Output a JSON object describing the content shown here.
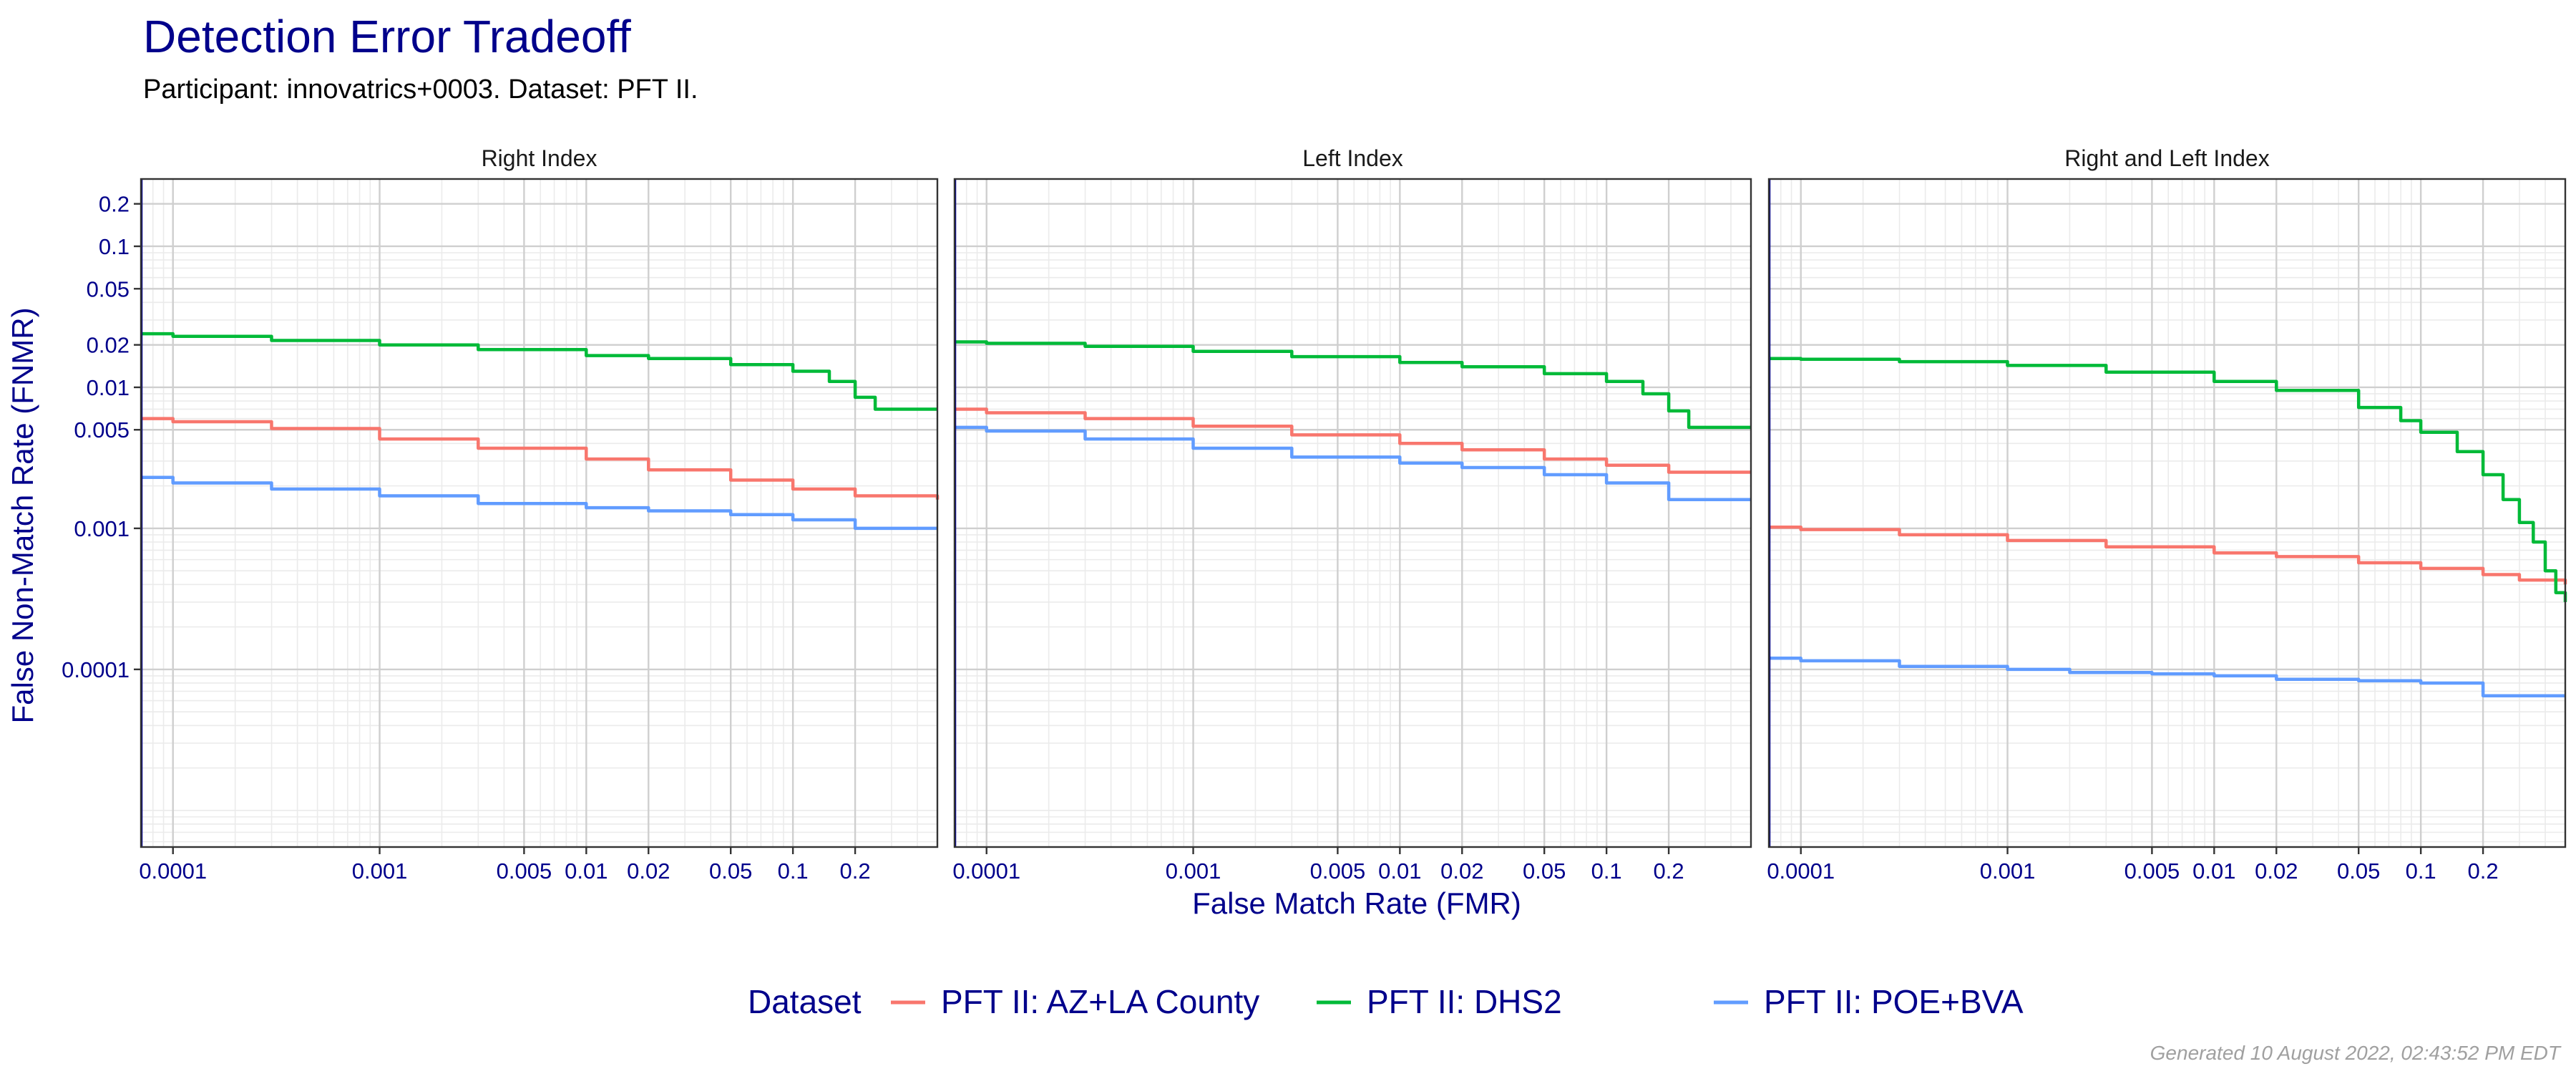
{
  "chart_data": {
    "type": "line",
    "title": "Detection Error Tradeoff",
    "subtitle": "Participant: innovatrics+0003. Dataset: PFT II.",
    "xlabel": "False Match Rate (FMR)",
    "ylabel": "False Non-Match Rate (FNMR)",
    "x_scale": "log",
    "y_scale": "log",
    "xlim": [
      7e-05,
      0.5
    ],
    "ylim": [
      5.5e-06,
      0.3
    ],
    "x_ticks": [
      {
        "value": 0.0001,
        "label": "0.0001"
      },
      {
        "value": 0.001,
        "label": "0.001"
      },
      {
        "value": 0.005,
        "label": "0.005"
      },
      {
        "value": 0.01,
        "label": "0.01"
      },
      {
        "value": 0.02,
        "label": "0.02"
      },
      {
        "value": 0.05,
        "label": "0.05"
      },
      {
        "value": 0.1,
        "label": "0.1"
      },
      {
        "value": 0.2,
        "label": "0.2"
      }
    ],
    "y_ticks": [
      {
        "value": 0.0001,
        "label": "0.0001"
      },
      {
        "value": 0.001,
        "label": "0.001"
      },
      {
        "value": 0.005,
        "label": "0.005"
      },
      {
        "value": 0.01,
        "label": "0.01"
      },
      {
        "value": 0.02,
        "label": "0.02"
      },
      {
        "value": 0.05,
        "label": "0.05"
      },
      {
        "value": 0.1,
        "label": "0.1"
      },
      {
        "value": 0.2,
        "label": "0.2"
      }
    ],
    "grid": true,
    "legend": {
      "title": "Dataset",
      "position": "bottom",
      "entries": [
        {
          "name": "PFT II: AZ+LA County",
          "color": "#f8766d"
        },
        {
          "name": "PFT II: DHS2",
          "color": "#00ba38"
        },
        {
          "name": "PFT II: POE+BVA",
          "color": "#619cff"
        }
      ]
    },
    "panels": [
      {
        "title": "Right Index",
        "series": [
          {
            "name": "PFT II: AZ+LA County",
            "color": "#f8766d",
            "x": [
              7e-05,
              0.0001,
              0.0003,
              0.001,
              0.003,
              0.01,
              0.02,
              0.05,
              0.1,
              0.2,
              0.5
            ],
            "y": [
              0.006,
              0.0057,
              0.0051,
              0.0043,
              0.0037,
              0.0031,
              0.0026,
              0.0022,
              0.0019,
              0.0017,
              0.0016
            ]
          },
          {
            "name": "PFT II: DHS2",
            "color": "#00ba38",
            "x": [
              7e-05,
              0.0001,
              0.0003,
              0.001,
              0.003,
              0.01,
              0.02,
              0.05,
              0.1,
              0.15,
              0.2,
              0.25,
              0.5
            ],
            "y": [
              0.024,
              0.023,
              0.0215,
              0.02,
              0.0185,
              0.0168,
              0.016,
              0.0145,
              0.013,
              0.011,
              0.0085,
              0.007,
              0.007
            ]
          },
          {
            "name": "PFT II: POE+BVA",
            "color": "#619cff",
            "x": [
              7e-05,
              0.0001,
              0.0003,
              0.001,
              0.003,
              0.01,
              0.02,
              0.05,
              0.1,
              0.2,
              0.5
            ],
            "y": [
              0.0023,
              0.0021,
              0.0019,
              0.0017,
              0.0015,
              0.0014,
              0.00133,
              0.00125,
              0.00115,
              0.001,
              0.001
            ]
          }
        ]
      },
      {
        "title": "Left Index",
        "series": [
          {
            "name": "PFT II: AZ+LA County",
            "color": "#f8766d",
            "x": [
              7e-05,
              0.0001,
              0.0003,
              0.001,
              0.003,
              0.01,
              0.02,
              0.05,
              0.1,
              0.2,
              0.5
            ],
            "y": [
              0.007,
              0.0066,
              0.006,
              0.0053,
              0.0046,
              0.004,
              0.0036,
              0.0031,
              0.0028,
              0.0025,
              0.0025
            ]
          },
          {
            "name": "PFT II: DHS2",
            "color": "#00ba38",
            "x": [
              7e-05,
              0.0001,
              0.0003,
              0.001,
              0.003,
              0.01,
              0.02,
              0.05,
              0.1,
              0.15,
              0.2,
              0.25,
              0.5
            ],
            "y": [
              0.021,
              0.0205,
              0.0195,
              0.018,
              0.0165,
              0.015,
              0.014,
              0.0125,
              0.011,
              0.009,
              0.0068,
              0.0052,
              0.0052
            ]
          },
          {
            "name": "PFT II: POE+BVA",
            "color": "#619cff",
            "x": [
              7e-05,
              0.0001,
              0.0003,
              0.001,
              0.003,
              0.01,
              0.02,
              0.05,
              0.1,
              0.2,
              0.5
            ],
            "y": [
              0.0052,
              0.0049,
              0.0043,
              0.0037,
              0.0032,
              0.0029,
              0.0027,
              0.0024,
              0.0021,
              0.0016,
              0.0016
            ]
          }
        ]
      },
      {
        "title": "Right and Left Index",
        "series": [
          {
            "name": "PFT II: AZ+LA County",
            "color": "#f8766d",
            "x": [
              7e-05,
              0.0001,
              0.0003,
              0.001,
              0.003,
              0.01,
              0.02,
              0.05,
              0.1,
              0.2,
              0.3,
              0.5
            ],
            "y": [
              0.00102,
              0.00098,
              0.0009,
              0.00082,
              0.00074,
              0.00067,
              0.00063,
              0.00057,
              0.00052,
              0.00047,
              0.00043,
              0.0004
            ]
          },
          {
            "name": "PFT II: DHS2",
            "color": "#00ba38",
            "x": [
              7e-05,
              0.0001,
              0.0003,
              0.001,
              0.003,
              0.01,
              0.02,
              0.05,
              0.08,
              0.1,
              0.15,
              0.2,
              0.25,
              0.3,
              0.35,
              0.4,
              0.45,
              0.5
            ],
            "y": [
              0.016,
              0.0158,
              0.0152,
              0.0143,
              0.0128,
              0.011,
              0.0095,
              0.0072,
              0.0058,
              0.0048,
              0.0035,
              0.0024,
              0.0016,
              0.0011,
              0.0008,
              0.0005,
              0.00035,
              0.0003
            ]
          },
          {
            "name": "PFT II: POE+BVA",
            "color": "#619cff",
            "x": [
              7e-05,
              0.0001,
              0.0003,
              0.001,
              0.002,
              0.005,
              0.01,
              0.02,
              0.05,
              0.1,
              0.2,
              0.5
            ],
            "y": [
              0.00012,
              0.000115,
              0.000105,
              0.0001,
              9.5e-05,
              9.3e-05,
              9e-05,
              8.5e-05,
              8.3e-05,
              8e-05,
              6.5e-05,
              6.5e-05
            ]
          }
        ]
      }
    ],
    "footer": "Generated 10 August 2022, 02:43:52 PM EDT"
  }
}
